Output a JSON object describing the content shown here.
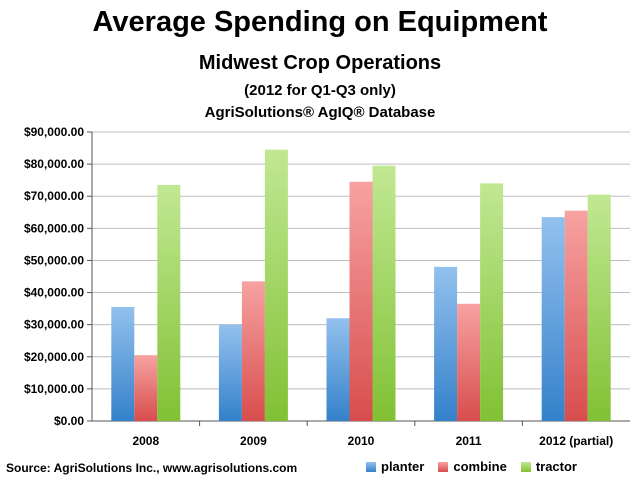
{
  "chart_data": {
    "type": "bar",
    "title": "Average Spending on Equipment",
    "subtitle": "Midwest Crop Operations",
    "notes": [
      "(2012 for Q1-Q3 only)",
      "AgriSolutions® AgIQ® Database"
    ],
    "categories": [
      "2008",
      "2009",
      "2010",
      "2011",
      "2012 (partial)"
    ],
    "series": [
      {
        "name": "planter",
        "values": [
          35500,
          30000,
          32000,
          48000,
          63500
        ],
        "color": "#3a8fe0"
      },
      {
        "name": "combine",
        "values": [
          20500,
          43500,
          74500,
          36500,
          65500
        ],
        "color": "#f05555"
      },
      {
        "name": "tractor",
        "values": [
          73500,
          84500,
          79500,
          74000,
          70500
        ],
        "color": "#8fd63a"
      }
    ],
    "ylim": [
      0,
      90000
    ],
    "yticks": [
      "$0.00",
      "$10,000.00",
      "$20,000.00",
      "$30,000.00",
      "$40,000.00",
      "$50,000.00",
      "$60,000.00",
      "$70,000.00",
      "$80,000.00",
      "$90,000.00"
    ],
    "grid": true,
    "legend": "bottom-right",
    "source": "Source: AgriSolutions Inc., www.agrisolutions.com"
  }
}
